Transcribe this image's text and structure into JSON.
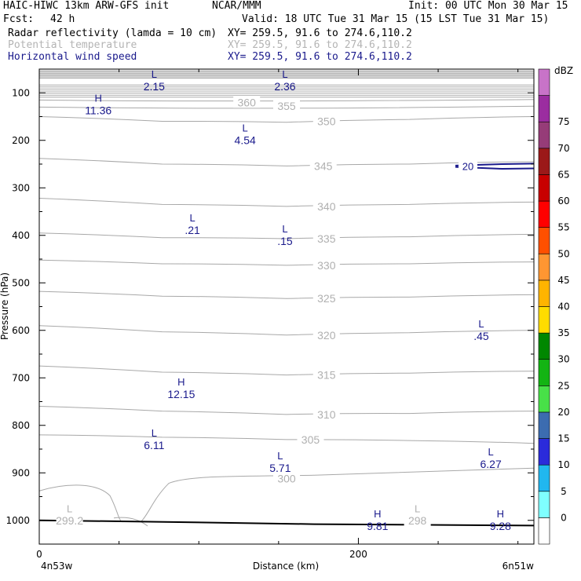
{
  "header": {
    "model": "HAIC-HIWC 13km ARW-GFS init",
    "org": "NCAR/MMM",
    "init": "Init: 00 UTC Mon 30 Mar 15",
    "fcst_label": "Fcst:",
    "fcst_value": "42 h",
    "valid": "Valid: 18 UTC Tue 31 Mar 15 (15 LST Tue 31 Mar 15)"
  },
  "fields": [
    {
      "name": "Radar reflectivity (lamda = 10 cm)",
      "xy": "XY= 259.5, 91.6 to 274.6,110.2",
      "color": "#000000"
    },
    {
      "name": "Potential temperature",
      "xy": "XY= 259.5, 91.6 to 274.6,110.2",
      "color": "#b4b4b4"
    },
    {
      "name": "Horizontal wind speed",
      "xy": "XY= 259.5, 91.6 to 274.6,110.2",
      "color": "#1a1a8c"
    }
  ],
  "colors": {
    "theta": "#a8a8a8",
    "wind": "#1a1a8c",
    "ground": "#000000"
  },
  "chart_data": {
    "type": "contour cross-section",
    "xlabel": "Distance (km)",
    "ylabel": "Pressure (hPa)",
    "xlim": [
      0,
      310
    ],
    "ylim": [
      50,
      1050
    ],
    "x_ticks": [
      "0",
      "200"
    ],
    "y_ticks": [
      "100",
      "200",
      "300",
      "400",
      "500",
      "600",
      "700",
      "800",
      "900",
      "1000"
    ],
    "x_endpoints": {
      "left": "4n53w",
      "right": "6n51w"
    },
    "colorbar": {
      "unit": "dBZ",
      "levels": [
        "0",
        "5",
        "10",
        "15",
        "20",
        "25",
        "30",
        "35",
        "40",
        "45",
        "50",
        "55",
        "60",
        "65",
        "70",
        "75"
      ],
      "colors": [
        "#ffffff",
        "#7fffff",
        "#21b7ef",
        "#2b2bdb",
        "#3c6cb0",
        "#48e048",
        "#13b413",
        "#008700",
        "#ffdc00",
        "#ffb400",
        "#ff9632",
        "#ff5000",
        "#ff0000",
        "#c80000",
        "#9b1919",
        "#963c78",
        "#9b2da0",
        "#c873c8"
      ]
    },
    "theta_labels": [
      {
        "text": "360",
        "x": 130,
        "p": 120
      },
      {
        "text": "355",
        "x": 155,
        "p": 128
      },
      {
        "text": "350",
        "x": 180,
        "p": 160
      },
      {
        "text": "345",
        "x": 178,
        "p": 254
      },
      {
        "text": "340",
        "x": 180,
        "p": 339
      },
      {
        "text": "335",
        "x": 180,
        "p": 407
      },
      {
        "text": "330",
        "x": 180,
        "p": 463
      },
      {
        "text": "325",
        "x": 180,
        "p": 533
      },
      {
        "text": "320",
        "x": 180,
        "p": 610
      },
      {
        "text": "315",
        "x": 180,
        "p": 694
      },
      {
        "text": "310",
        "x": 180,
        "p": 777
      },
      {
        "text": "305",
        "x": 170,
        "p": 830
      },
      {
        "text": "300",
        "x": 155,
        "p": 912
      },
      {
        "text": "298",
        "x": 237,
        "p": 1000
      },
      {
        "text": "299.2",
        "x": 19,
        "p": 1000
      }
    ],
    "wind_extrema": [
      {
        "type": "L",
        "value": "2.15",
        "x": 72,
        "p": 75
      },
      {
        "type": "L",
        "value": "2.36",
        "x": 154,
        "p": 75
      },
      {
        "type": "H",
        "value": "11.36",
        "x": 37,
        "p": 125
      },
      {
        "type": "L",
        "value": "4.54",
        "x": 129,
        "p": 188
      },
      {
        "type": "L",
        "value": ".21",
        "x": 96,
        "p": 377
      },
      {
        "type": "L",
        "value": ".15",
        "x": 154,
        "p": 400
      },
      {
        "type": "L",
        "value": ".45",
        "x": 277,
        "p": 600
      },
      {
        "type": "H",
        "value": "12.15",
        "x": 89,
        "p": 723
      },
      {
        "type": "L",
        "value": "6.11",
        "x": 72,
        "p": 830
      },
      {
        "type": "L",
        "value": "5.71",
        "x": 151,
        "p": 878
      },
      {
        "type": "L",
        "value": "6.27",
        "x": 283,
        "p": 870
      },
      {
        "type": "H",
        "value": "9.81",
        "x": 212,
        "p": 1000
      },
      {
        "type": "H",
        "value": "9.28",
        "x": 289,
        "p": 1000
      }
    ],
    "theta_low_marker": {
      "type": "L",
      "x": 19,
      "p": 975
    },
    "theta_low_marker2": {
      "type": "L",
      "x": 237,
      "p": 975
    },
    "wind_contour_label": "20"
  }
}
